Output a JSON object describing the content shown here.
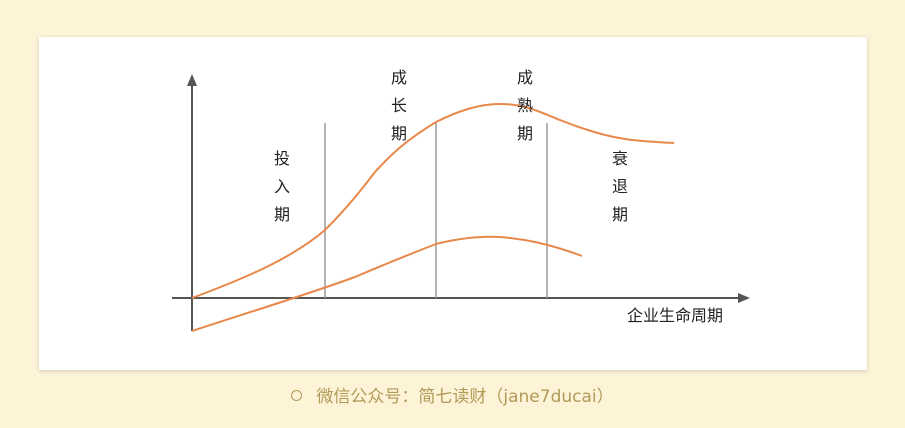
{
  "diagram": {
    "stages": [
      {
        "id": "intro",
        "label": "投\n入\n期"
      },
      {
        "id": "growth",
        "label": "成\n长\n期"
      },
      {
        "id": "maturity",
        "label": "成\n熟\n期"
      },
      {
        "id": "decline",
        "label": "衰\n退\n期"
      }
    ],
    "x_axis_label": "企业生命周期",
    "colors": {
      "curve": "#e8884a",
      "axis": "#555555",
      "divider": "#9a9a9a"
    }
  },
  "footer": {
    "text": "微信公众号：简七读财（jane7ducai）"
  }
}
